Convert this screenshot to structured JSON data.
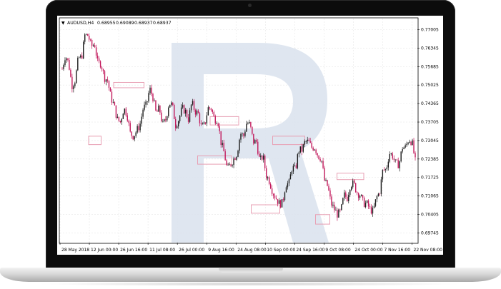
{
  "window": {
    "symbol_label": "AUDUSD,H4",
    "ohlc": [
      "0.68955",
      "0.69089",
      "0.68937",
      "0.68937"
    ]
  },
  "watermark": {
    "name": "R"
  },
  "colors": {
    "bull": "#1a1a1a",
    "bear": "#c2185b",
    "highlight": "#e8a0b4",
    "watermark": "#dbe3ee",
    "grid": "#e6e6e6"
  },
  "chart_data": {
    "type": "candlestick",
    "symbol": "AUDUSD",
    "timeframe": "H4",
    "ylim": [
      0.694,
      0.774
    ],
    "y_ticks": [
      "0.77005",
      "0.76345",
      "0.75685",
      "0.75025",
      "0.74365",
      "0.73705",
      "0.73045",
      "0.72385",
      "0.71725",
      "0.71065",
      "0.70405",
      "0.69745"
    ],
    "x_ticks": [
      "28 May 2018",
      "12 Jun 00:00",
      "26 Jun 16:00",
      "11 Jul 08:00",
      "26 Jul 00:00",
      "9 Aug 16:00",
      "24 Aug 08:00",
      "10 Sep 00:00",
      "24 Sep 16:00",
      "9 Oct 08:00",
      "24 Oct 00:00",
      "7 Nov 16:00",
      "22 Nov 08:00"
    ],
    "price_path": [
      [
        0.756,
        0.761
      ],
      [
        0.758,
        0.75
      ],
      [
        0.752,
        0.76
      ],
      [
        0.76,
        0.768
      ],
      [
        0.768,
        0.764
      ],
      [
        0.765,
        0.758
      ],
      [
        0.758,
        0.753
      ],
      [
        0.752,
        0.746
      ],
      [
        0.743,
        0.738
      ],
      [
        0.737,
        0.742
      ],
      [
        0.74,
        0.733
      ],
      [
        0.732,
        0.734
      ],
      [
        0.736,
        0.742
      ],
      [
        0.743,
        0.749
      ],
      [
        0.746,
        0.74
      ],
      [
        0.742,
        0.736
      ],
      [
        0.738,
        0.744
      ],
      [
        0.743,
        0.736
      ],
      [
        0.738,
        0.742
      ],
      [
        0.741,
        0.738
      ],
      [
        0.744,
        0.741
      ],
      [
        0.74,
        0.735
      ],
      [
        0.736,
        0.742
      ],
      [
        0.742,
        0.738
      ],
      [
        0.738,
        0.73
      ],
      [
        0.726,
        0.72
      ],
      [
        0.722,
        0.724
      ],
      [
        0.726,
        0.733
      ],
      [
        0.732,
        0.737
      ],
      [
        0.736,
        0.73
      ],
      [
        0.73,
        0.723
      ],
      [
        0.725,
        0.718
      ],
      [
        0.716,
        0.712
      ],
      [
        0.71,
        0.708
      ],
      [
        0.708,
        0.715
      ],
      [
        0.715,
        0.721
      ],
      [
        0.72,
        0.727
      ],
      [
        0.727,
        0.73
      ],
      [
        0.73,
        0.728
      ],
      [
        0.728,
        0.725
      ],
      [
        0.724,
        0.716
      ],
      [
        0.714,
        0.708
      ],
      [
        0.706,
        0.704
      ],
      [
        0.705,
        0.711
      ],
      [
        0.71,
        0.715
      ],
      [
        0.715,
        0.712
      ],
      [
        0.711,
        0.708
      ],
      [
        0.708,
        0.706
      ],
      [
        0.705,
        0.71
      ],
      [
        0.712,
        0.72
      ],
      [
        0.72,
        0.726
      ],
      [
        0.725,
        0.722
      ],
      [
        0.722,
        0.728
      ],
      [
        0.728,
        0.731
      ],
      [
        0.73,
        0.723
      ]
    ],
    "highlight_zones": [
      {
        "t0": 0.15,
        "t1": 0.235,
        "p0": 0.7493,
        "p1": 0.7512
      },
      {
        "t0": 0.08,
        "t1": 0.115,
        "p0": 0.729,
        "p1": 0.732
      },
      {
        "t0": 0.42,
        "t1": 0.5,
        "p0": 0.736,
        "p1": 0.739
      },
      {
        "t0": 0.385,
        "t1": 0.48,
        "p0": 0.722,
        "p1": 0.725
      },
      {
        "t0": 0.595,
        "t1": 0.685,
        "p0": 0.729,
        "p1": 0.732
      },
      {
        "t0": 0.535,
        "t1": 0.615,
        "p0": 0.7045,
        "p1": 0.7075
      },
      {
        "t0": 0.715,
        "t1": 0.755,
        "p0": 0.7006,
        "p1": 0.704
      },
      {
        "t0": 0.775,
        "t1": 0.85,
        "p0": 0.7165,
        "p1": 0.7188
      }
    ]
  }
}
